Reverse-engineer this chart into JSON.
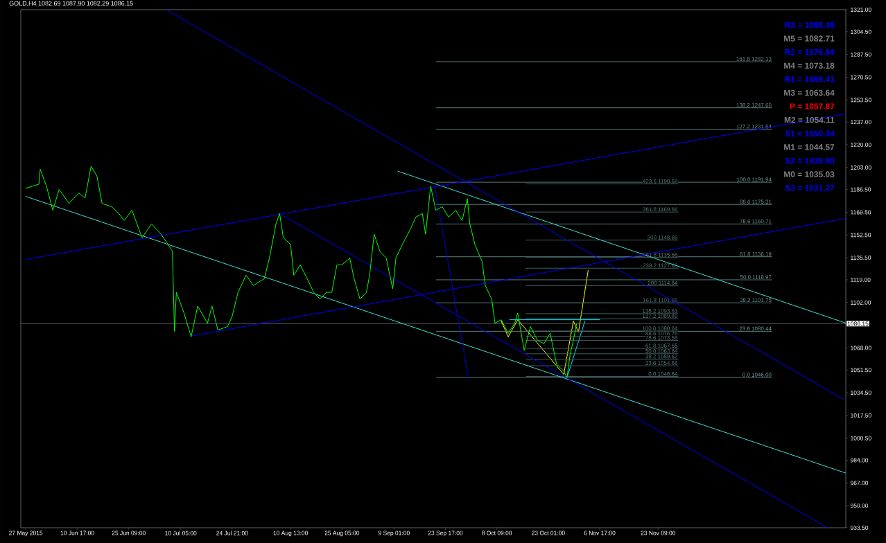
{
  "chart_data": {
    "type": "line",
    "title": "GOLD,H4 1082.69 1087.90 1082.29 1086.15",
    "xlim": [
      "2015-05-25T14:00",
      "2016-01-15T22:00"
    ],
    "ylim": [
      933.5,
      1321
    ],
    "xticks": [
      {
        "value": "2015-05-27T00:00",
        "label": "27 May 2015"
      },
      {
        "value": "2015-06-10T17:00",
        "label": "10 Jun 17:00"
      },
      {
        "value": "2015-06-25T09:00",
        "label": "25 Jun 09:00"
      },
      {
        "value": "2015-07-10T05:00",
        "label": "10 Jul 05:00"
      },
      {
        "value": "2015-07-24T21:00",
        "label": "24 Jul 21:00"
      },
      {
        "value": "2015-08-10T13:00",
        "label": "10 Aug 13:00"
      },
      {
        "value": "2015-08-25T05:00",
        "label": "25 Aug 05:00"
      },
      {
        "value": "2015-09-09T01:00",
        "label": "9 Sep 01:00"
      },
      {
        "value": "2015-09-23T17:00",
        "label": "23 Sep 17:00"
      },
      {
        "value": "2015-10-08T09:00",
        "label": "8 Oct 09:00"
      },
      {
        "value": "2015-10-23T01:00",
        "label": "23 Oct 01:00"
      },
      {
        "value": "2015-11-06T17:00",
        "label": "6 Nov 17:00"
      },
      {
        "value": "2015-11-23T09:00",
        "label": "23 Nov 09:00"
      }
    ],
    "yticks": [
      {
        "value": 1321,
        "label": "1321.00"
      },
      {
        "value": 1304.5,
        "label": "1304.50"
      },
      {
        "value": 1287.5,
        "label": "1287.50"
      },
      {
        "value": 1270.5,
        "label": "1270.50"
      },
      {
        "value": 1253.5,
        "label": "1253.50"
      },
      {
        "value": 1237,
        "label": "1237.00"
      },
      {
        "value": 1220,
        "label": "1220.00"
      },
      {
        "value": 1203,
        "label": "1203.00"
      },
      {
        "value": 1186.5,
        "label": "1186.50"
      },
      {
        "value": 1169.5,
        "label": "1169.50"
      },
      {
        "value": 1152.5,
        "label": "1152.50"
      },
      {
        "value": 1135.5,
        "label": "1135.50"
      },
      {
        "value": 1119,
        "label": "1119.00"
      },
      {
        "value": 1102,
        "label": "1102.00"
      },
      {
        "value": 1068,
        "label": "1068.00"
      },
      {
        "value": 1051.5,
        "label": "1051.50"
      },
      {
        "value": 1034.5,
        "label": "1034.50"
      },
      {
        "value": 1017.5,
        "label": "1017.50"
      },
      {
        "value": 1000.5,
        "label": "1000.50"
      },
      {
        "value": 984,
        "label": "984.00"
      },
      {
        "value": 967,
        "label": "967.00"
      },
      {
        "value": 950,
        "label": "950.00"
      },
      {
        "value": 933.5,
        "label": "933.50"
      }
    ],
    "ref_lines": [
      {
        "axis": "y",
        "value": 1086.15,
        "label": "1086.15",
        "color": "#a0a8b8"
      }
    ],
    "annotations": [
      "R3 = 1088.48",
      "M5 = 1082.71",
      "R2 = 1076.94",
      "M4 = 1073.18",
      "R1 = 1069.41",
      "M3 = 1063.64",
      "P  = 1057.87",
      "M2 = 1054.11",
      "S1 = 1050.34",
      "M1 = 1044.57",
      "S2 = 1038.80",
      "M0 = 1035.03",
      "S3 = 1031.27"
    ],
    "series": [
      {
        "color": "#ffff00",
        "x": [
          "2015-10-09T15:00",
          "2015-10-11T15:00",
          "2015-10-14T08:00",
          "2015-10-27T11:00",
          "2015-10-30T05:00",
          "2015-10-31T16:00",
          "2015-11-03T10:00"
        ],
        "values": [
          1088.1,
          1076.3,
          1089.1,
          1048.2,
          1088.1,
          1079.9,
          1126.0
        ]
      },
      {
        "color": "#00e5ff",
        "x": [
          "2015-10-12T00:00",
          "2015-11-06T17:00"
        ],
        "values": [
          1089.1,
          1089.1
        ]
      },
      {
        "color": "#00e5ff",
        "x": [
          "2015-10-28T13:00",
          "2015-11-02T12:00"
        ],
        "values": [
          1047.1,
          1088.1
        ]
      },
      {
        "name": "161.8 1282.13",
        "color": "#5a8080",
        "x": [
          "2015-09-21T03:00",
          "2015-12-25T20:00"
        ],
        "values": [
          1282.13,
          1282.13
        ]
      },
      {
        "name": "138.2 1247.60",
        "color": "#5a8080",
        "x": [
          "2015-09-21T03:00",
          "2015-12-25T20:00"
        ],
        "values": [
          1247.6,
          1247.6
        ]
      },
      {
        "name": "127.2 1231.64",
        "color": "#5a8080",
        "x": [
          "2015-09-21T03:00",
          "2015-12-25T20:00"
        ],
        "values": [
          1231.64,
          1231.64
        ]
      },
      {
        "name": "100.0 1191.94",
        "color": "#5a8080",
        "x": [
          "2015-09-21T03:00",
          "2015-12-25T20:00"
        ],
        "values": [
          1191.94,
          1191.94
        ]
      },
      {
        "name": "88.6 1175.31",
        "color": "#5a8080",
        "x": [
          "2015-09-21T03:00",
          "2015-12-25T20:00"
        ],
        "values": [
          1175.31,
          1175.31
        ]
      },
      {
        "name": "78.6 1160.71",
        "color": "#5a8080",
        "x": [
          "2015-09-21T03:00",
          "2015-12-25T20:00"
        ],
        "values": [
          1160.71,
          1160.71
        ]
      },
      {
        "name": "61.8 1136.19",
        "color": "#5a8080",
        "x": [
          "2015-09-21T03:00",
          "2015-12-25T20:00"
        ],
        "values": [
          1136.19,
          1136.19
        ]
      },
      {
        "name": "50.0 1118.97",
        "color": "#5a8080",
        "x": [
          "2015-09-21T03:00",
          "2015-12-25T20:00"
        ],
        "values": [
          1118.97,
          1118.97
        ]
      },
      {
        "name": "38.2 1101.75",
        "color": "#5a8080",
        "x": [
          "2015-09-21T03:00",
          "2015-12-25T20:00"
        ],
        "values": [
          1101.75,
          1101.75
        ]
      },
      {
        "name": "23.6 1080.44",
        "color": "#5a8080",
        "x": [
          "2015-09-21T03:00",
          "2015-12-25T20:00"
        ],
        "values": [
          1080.44,
          1080.44
        ]
      },
      {
        "name": "0.0 1046.00",
        "color": "#5a8080",
        "x": [
          "2015-09-21T03:00",
          "2015-12-25T20:00"
        ],
        "values": [
          1046,
          1046
        ]
      },
      {
        "name": "423.6 1190.68",
        "color": "#3f5f5f",
        "x": [
          "2015-10-16T17:00",
          "2015-11-29T01:00"
        ],
        "values": [
          1190.68,
          1190.68
        ]
      },
      {
        "name": "361.8 1169.66",
        "color": "#3f5f5f",
        "x": [
          "2015-10-16T17:00",
          "2015-11-29T01:00"
        ],
        "values": [
          1169.66,
          1169.66
        ]
      },
      {
        "name": "300 1148.65",
        "color": "#3f5f5f",
        "x": [
          "2015-10-16T17:00",
          "2015-11-29T01:00"
        ],
        "values": [
          1148.65,
          1148.65
        ]
      },
      {
        "name": "261.8 1135.66",
        "color": "#3f5f5f",
        "x": [
          "2015-10-16T17:00",
          "2015-11-29T01:00"
        ],
        "values": [
          1135.66,
          1135.66
        ]
      },
      {
        "name": "238.2 1127.63",
        "color": "#3f5f5f",
        "x": [
          "2015-10-16T17:00",
          "2015-11-29T01:00"
        ],
        "values": [
          1127.63,
          1127.63
        ]
      },
      {
        "name": "200 1114.64",
        "color": "#3f5f5f",
        "x": [
          "2015-10-16T17:00",
          "2015-11-29T01:00"
        ],
        "values": [
          1114.64,
          1114.64
        ]
      },
      {
        "name": "161.8 1101.65",
        "color": "#3f5f5f",
        "x": [
          "2015-10-16T17:00",
          "2015-11-29T01:00"
        ],
        "values": [
          1101.65,
          1101.65
        ]
      },
      {
        "name": "138.2 1093.63",
        "color": "#3f5f5f",
        "x": [
          "2015-10-16T17:00",
          "2015-11-29T01:00"
        ],
        "values": [
          1093.63,
          1093.63
        ]
      },
      {
        "name": "127.2 1089.89",
        "color": "#3f5f5f",
        "x": [
          "2015-10-16T17:00",
          "2015-11-29T01:00"
        ],
        "values": [
          1089.89,
          1089.89
        ]
      },
      {
        "name": "100.0 1080.64",
        "color": "#3f5f5f",
        "x": [
          "2015-10-16T17:00",
          "2015-11-29T01:00"
        ],
        "values": [
          1080.64,
          1080.64
        ]
      },
      {
        "name": "88.6 1076.76",
        "color": "#3f5f5f",
        "x": [
          "2015-10-16T17:00",
          "2015-11-29T01:00"
        ],
        "values": [
          1076.76,
          1076.76
        ]
      },
      {
        "name": "78.6 1073.56",
        "color": "#3f5f5f",
        "x": [
          "2015-10-16T17:00",
          "2015-11-29T01:00"
        ],
        "values": [
          1073.56,
          1073.56
        ]
      },
      {
        "name": "61.8 1067.65",
        "color": "#3f5f5f",
        "x": [
          "2015-10-16T17:00",
          "2015-11-29T01:00"
        ],
        "values": [
          1067.65,
          1067.65
        ]
      },
      {
        "name": "50.0 1063.64",
        "color": "#3f5f5f",
        "x": [
          "2015-10-16T17:00",
          "2015-11-29T01:00"
        ],
        "values": [
          1063.64,
          1063.64
        ]
      },
      {
        "name": "38.2 1059.62",
        "color": "#3f5f5f",
        "x": [
          "2015-10-16T17:00",
          "2015-11-29T01:00"
        ],
        "values": [
          1059.62,
          1059.62
        ]
      },
      {
        "name": "23.6 1054.66",
        "color": "#3f5f5f",
        "x": [
          "2015-10-16T17:00",
          "2015-11-29T01:00"
        ],
        "values": [
          1054.66,
          1054.66
        ]
      },
      {
        "name": "0.0 1046.64",
        "color": "#3f5f5f",
        "x": [
          "2015-10-16T17:00",
          "2015-11-29T01:00"
        ],
        "values": [
          1046.64,
          1046.64
        ]
      },
      {
        "color": "#40e0d0",
        "x": [
          "2015-05-27T00:00",
          "2016-01-15T22:00"
        ],
        "values": [
          1181.3,
          974.4
        ]
      },
      {
        "color": "#40e0d0",
        "x": [
          "2015-09-10T03:00",
          "2016-01-15T22:00"
        ],
        "values": [
          1200.2,
          1086.6
        ]
      },
      {
        "color": "#0000ff",
        "x": [
          "2015-05-27T00:00",
          "2016-01-15T22:00"
        ],
        "values": [
          1134.2,
          1243.2
        ]
      },
      {
        "color": "#0000ff",
        "x": [
          "2015-07-13T00:00",
          "2016-01-15T22:00"
        ],
        "values": [
          1076.8,
          1164.9
        ]
      },
      {
        "color": "#0000ff",
        "x": [
          "2015-07-06T01:00",
          "2016-01-15T22:00"
        ],
        "values": [
          1321,
          1028.7
        ]
      },
      {
        "color": "#0000ff",
        "x": [
          "2015-08-07T10:00",
          "2016-01-10T19:00"
        ],
        "values": [
          1168.5,
          933.5
        ]
      },
      {
        "color": "#0000ff",
        "line_style": "dotted",
        "x": [
          "2015-09-20T14:00",
          "2015-09-30T07:00"
        ],
        "values": [
          1190,
          1045
        ]
      },
      {
        "color": "#00ff00",
        "x": [
          "2015-05-27T00:00",
          "2015-05-30T18:00",
          "2015-05-31T03:00",
          "2015-06-01T22:00",
          "2015-06-03T17:00",
          "2015-06-05T12:00",
          "2015-06-08T09:00",
          "2015-06-11T02:00",
          "2015-06-12T22:00",
          "2015-06-14T15:00",
          "2015-06-16T07:00",
          "2015-06-17T18:00",
          "2015-06-20T13:00",
          "2015-06-22T14:00",
          "2015-06-24T02:00",
          "2015-06-26T07:00",
          "2015-06-29T04:00",
          "2015-07-01T21:00",
          "2015-07-04T14:00",
          "2015-07-06T14:00",
          "2015-07-07T20:00",
          "2015-07-08T10:00",
          "2015-07-08T23:00",
          "2015-07-11T03:00",
          "2015-07-13T04:00",
          "2015-07-15T01:00",
          "2015-07-17T20:00",
          "2015-07-19T03:00",
          "2015-07-20T19:00",
          "2015-07-23T14:00",
          "2015-07-24T21:00",
          "2015-07-26T13:00",
          "2015-07-28T20:00",
          "2015-07-30T22:00",
          "2015-08-03T01:00",
          "2015-08-04T12:00",
          "2015-08-06T09:00",
          "2015-08-07T10:00",
          "2015-08-08T11:00",
          "2015-08-10T13:00",
          "2015-08-11T11:00",
          "2015-08-13T07:00",
          "2015-08-15T07:00",
          "2015-08-17T03:00",
          "2015-08-18T23:00",
          "2015-08-20T19:00",
          "2015-08-22T07:00",
          "2015-08-23T18:00",
          "2015-08-25T05:00",
          "2015-08-27T10:00",
          "2015-08-28T16:00",
          "2015-08-30T08:00",
          "2015-09-01T04:00",
          "2015-09-02T02:00",
          "2015-09-03T09:00",
          "2015-09-05T00:00",
          "2015-09-06T20:00",
          "2015-09-08T16:00",
          "2015-09-09T14:00",
          "2015-09-11T10:00",
          "2015-09-13T11:00",
          "2015-09-15T07:00",
          "2015-09-17T03:00",
          "2015-09-18T01:00",
          "2015-09-19T12:00",
          "2015-09-20T23:00",
          "2015-09-22T19:00",
          "2015-09-24T15:00",
          "2015-09-26T15:00",
          "2015-09-28T11:00",
          "2015-09-29T23:00",
          "2015-09-30T16:00",
          "2015-10-02T03:00",
          "2015-10-04T04:00",
          "2015-10-05T02:00",
          "2015-10-06T22:00",
          "2015-10-07T20:00",
          "2015-10-09T15:00",
          "2015-10-11T15:00",
          "2015-10-13T11:00",
          "2015-10-14T08:00",
          "2015-10-16T04:00",
          "2015-10-17T23:00",
          "2015-10-19T23:00",
          "2015-10-21T19:00",
          "2015-10-23T14:00",
          "2015-10-25T10:00",
          "2015-10-27T11:00",
          "2015-10-28T09:00",
          "2015-10-29T07:00",
          "2015-10-30T05:00",
          "2015-10-31T03:00"
        ],
        "values": [
          1187.4,
          1190.5,
          1201.7,
          1188.9,
          1171.0,
          1186.4,
          1176.1,
          1183.8,
          1180.2,
          1203.8,
          1196.6,
          1176.1,
          1173.6,
          1168.5,
          1163.3,
          1171.0,
          1150.5,
          1160.8,
          1153.1,
          1145.4,
          1140.3,
          1080.4,
          1109.6,
          1094.2,
          1076.3,
          1099.3,
          1086.5,
          1099.3,
          1081.4,
          1084.0,
          1091.7,
          1109.6,
          1122.4,
          1114.7,
          1119.8,
          1135.2,
          1160.8,
          1168.5,
          1150.5,
          1145.4,
          1122.4,
          1130.1,
          1119.8,
          1109.6,
          1104.5,
          1109.6,
          1109.6,
          1130.1,
          1130.1,
          1135.2,
          1119.8,
          1104.5,
          1109.6,
          1122.4,
          1153.1,
          1140.3,
          1135.2,
          1112.2,
          1135.2,
          1145.4,
          1155.6,
          1165.9,
          1168.5,
          1153.1,
          1188.9,
          1171.0,
          1173.6,
          1165.9,
          1171.0,
          1163.3,
          1179.7,
          1160.8,
          1145.4,
          1132.6,
          1114.7,
          1104.5,
          1086.5,
          1089.1,
          1078.9,
          1086.5,
          1094.2,
          1066.1,
          1084.0,
          1073.7,
          1071.2,
          1078.9,
          1055.8,
          1050.7,
          1045.6,
          1063.5,
          1073.7,
          1086.1
        ]
      }
    ]
  }
}
